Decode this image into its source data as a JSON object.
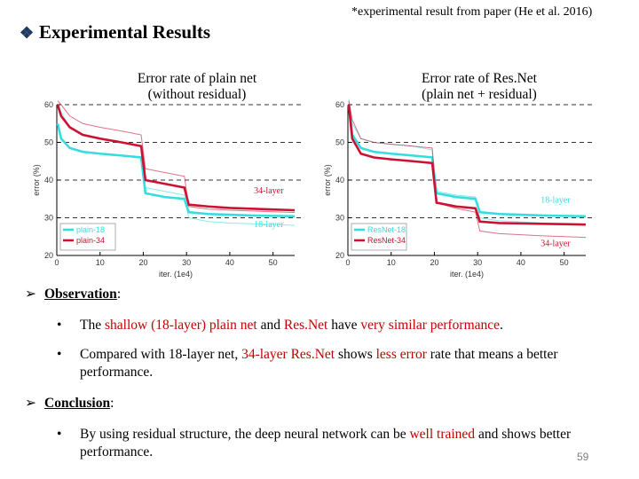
{
  "header": {
    "bullet_icon": "diamond-bullet-icon",
    "title": "Experimental Results",
    "source_note": "*experimental result from paper (He et al. 2016)"
  },
  "chart_data": [
    {
      "type": "line",
      "caption_line1": "Error rate of plain net",
      "caption_line2": "(without residual)",
      "xlabel": "iter. (1e4)",
      "ylabel": "error (%)",
      "xlim": [
        0,
        55
      ],
      "ylim": [
        20,
        60
      ],
      "xticks": [
        "0",
        "10",
        "20",
        "30",
        "40",
        "50"
      ],
      "yticks": [
        "20",
        "30",
        "40",
        "50",
        "60"
      ],
      "dashed_gridlines_y": [
        30,
        40,
        50,
        60
      ],
      "legend": [
        "plain-18",
        "plain-34"
      ],
      "series": [
        {
          "name": "plain-18",
          "color": "#33dde0",
          "x": [
            0.2,
            1,
            3,
            6,
            10,
            15,
            19.5,
            20.5,
            25,
            29.5,
            30.5,
            35,
            40,
            45,
            50,
            55
          ],
          "y": [
            55,
            51,
            48.5,
            47.5,
            47,
            46.5,
            46,
            36.5,
            35.5,
            35,
            31.5,
            31,
            30.8,
            30.6,
            30.5,
            30.4
          ],
          "train_x": [
            0.2,
            1,
            3,
            6,
            10,
            15,
            19.5,
            20.5,
            25,
            29.5,
            30.5,
            35,
            40,
            45,
            50,
            55
          ],
          "train_y": [
            60,
            58,
            54,
            52,
            51,
            50,
            49,
            38,
            37,
            36,
            30,
            29,
            28.6,
            28.4,
            28.2,
            28
          ]
        },
        {
          "name": "plain-34",
          "color": "#cc1133",
          "x": [
            0.2,
            1,
            3,
            6,
            10,
            15,
            19.5,
            20.5,
            25,
            29.5,
            30.5,
            35,
            40,
            45,
            50,
            55
          ],
          "y": [
            60,
            57,
            54,
            52,
            51,
            50,
            49,
            40,
            39,
            38,
            33.5,
            33,
            32.6,
            32.4,
            32.2,
            32
          ],
          "train_x": [
            0.2,
            1,
            3,
            6,
            10,
            15,
            19.5,
            20.5,
            25,
            29.5,
            30.5,
            35,
            40,
            45,
            50,
            55
          ],
          "train_y": [
            61,
            60,
            57,
            55,
            54,
            53,
            52,
            43,
            42,
            41,
            33,
            32.3,
            32,
            31.8,
            31.6,
            31.4
          ]
        }
      ],
      "annotations": [
        {
          "text": "34-layer",
          "x": 49,
          "y": 36.5,
          "color": "#cc1133"
        },
        {
          "text": "18-layer",
          "x": 49,
          "y": 27.5,
          "color": "#33dde0"
        }
      ]
    },
    {
      "type": "line",
      "caption_line1": "Error rate of Res.Net",
      "caption_line2": "(plain net + residual)",
      "xlabel": "iter. (1e4)",
      "ylabel": "error (%)",
      "xlim": [
        0,
        55
      ],
      "ylim": [
        20,
        60
      ],
      "xticks": [
        "0",
        "10",
        "20",
        "30",
        "40",
        "50"
      ],
      "yticks": [
        "20",
        "30",
        "40",
        "50",
        "60"
      ],
      "dashed_gridlines_y": [
        30,
        40,
        50,
        60
      ],
      "legend": [
        "ResNet-18",
        "ResNet-34"
      ],
      "series": [
        {
          "name": "ResNet-18",
          "color": "#33dde0",
          "x": [
            0.2,
            1,
            3,
            6,
            10,
            15,
            19.5,
            20.5,
            25,
            29.5,
            30.5,
            35,
            40,
            45,
            50,
            55
          ],
          "y": [
            60,
            52,
            48.5,
            47.5,
            47,
            46.5,
            46,
            36.5,
            35.5,
            35,
            31.5,
            31,
            30.8,
            30.6,
            30.5,
            30.4
          ],
          "train_x": [
            0.2,
            1,
            3,
            6,
            10,
            15,
            19.5,
            20.5,
            25,
            29.5,
            30.5,
            35,
            40,
            45,
            50,
            55
          ],
          "train_y": [
            62,
            55,
            51,
            50,
            49.5,
            49,
            48,
            37,
            36,
            35.5,
            30,
            29.2,
            28.9,
            28.6,
            28.4,
            28.2
          ]
        },
        {
          "name": "ResNet-34",
          "color": "#cc1133",
          "x": [
            0.2,
            1,
            3,
            6,
            10,
            15,
            19.5,
            20.5,
            25,
            29.5,
            30.5,
            35,
            40,
            45,
            50,
            55
          ],
          "y": [
            60,
            51,
            47,
            46,
            45.5,
            45,
            44.5,
            34,
            33,
            32.5,
            29,
            28.6,
            28.5,
            28.4,
            28.3,
            28.2
          ],
          "train_x": [
            0.2,
            1,
            3,
            6,
            10,
            15,
            19.5,
            20.5,
            25,
            29.5,
            30.5,
            35,
            40,
            45,
            50,
            55
          ],
          "train_y": [
            61,
            56,
            51,
            50,
            49.5,
            49,
            48.5,
            34,
            32.5,
            31.5,
            26.5,
            25.8,
            25.5,
            25.2,
            25,
            24.8
          ]
        }
      ],
      "annotations": [
        {
          "text": "18-layer",
          "x": 48,
          "y": 34,
          "color": "#33dde0"
        },
        {
          "text": "34-layer",
          "x": 48,
          "y": 22.5,
          "color": "#cc1133"
        }
      ]
    }
  ],
  "observation": {
    "arrow_icon": "arrow-bullet-icon",
    "heading": "Observation",
    "colon": ":",
    "items": [
      {
        "bullet": "•",
        "parts": [
          {
            "text": "The ",
            "red": false
          },
          {
            "text": "shallow (18-layer) plain net",
            "red": true
          },
          {
            "text": " and ",
            "red": false
          },
          {
            "text": "Res.Net",
            "red": true
          },
          {
            "text": " have ",
            "red": false
          },
          {
            "text": "very similar performance",
            "red": true
          },
          {
            "text": ".",
            "red": false
          }
        ]
      },
      {
        "bullet": "•",
        "parts": [
          {
            "text": "Compared with 18-layer net, ",
            "red": false
          },
          {
            "text": "34-layer Res.Net",
            "red": true
          },
          {
            "text": " shows ",
            "red": false
          },
          {
            "text": "less error",
            "red": true
          },
          {
            "text": " rate that means a better performance.",
            "red": false
          }
        ]
      }
    ]
  },
  "conclusion": {
    "arrow_icon": "arrow-bullet-icon",
    "heading": "Conclusion",
    "colon": ":",
    "items": [
      {
        "bullet": "•",
        "parts": [
          {
            "text": "By using residual structure, the deep neural network can be ",
            "red": false
          },
          {
            "text": "well trained",
            "red": true
          },
          {
            "text": " and shows better performance.",
            "red": false
          }
        ]
      }
    ]
  },
  "footer": {
    "page_number": "59"
  }
}
